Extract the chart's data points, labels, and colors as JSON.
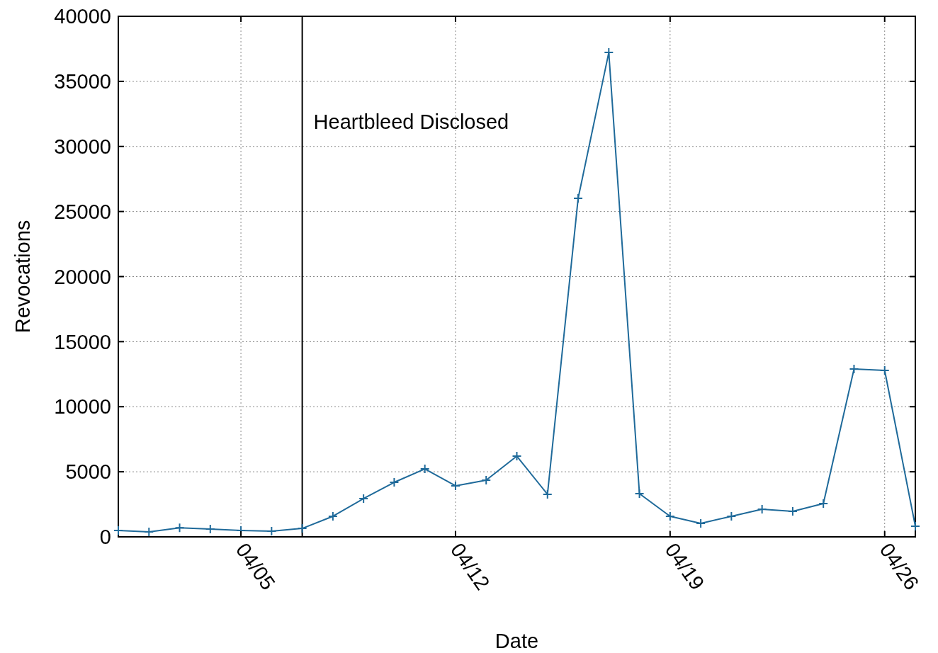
{
  "chart_data": {
    "type": "line",
    "xlabel": "Date",
    "ylabel": "Revocations",
    "x": [
      "--04-01",
      "--04-02",
      "--04-03",
      "--04-04",
      "--04-05",
      "--04-06",
      "--04-07",
      "--04-08",
      "--04-09",
      "--04-10",
      "--04-11",
      "--04-12",
      "--04-13",
      "--04-14",
      "--04-15",
      "--04-16",
      "--04-17",
      "--04-18",
      "--04-19",
      "--04-20",
      "--04-21",
      "--04-22",
      "--04-23",
      "--04-24",
      "--04-25",
      "--04-26",
      "--04-27"
    ],
    "series": [
      {
        "color": "#1f6a9a",
        "values": [
          490,
          380,
          700,
          600,
          490,
          430,
          650,
          1580,
          2940,
          4190,
          5220,
          3920,
          4350,
          6200,
          3270,
          26010,
          37220,
          3320,
          1580,
          1030,
          1580,
          2120,
          1960,
          2560,
          12900,
          12790,
          820
        ]
      }
    ],
    "xlim": [
      "--04-01",
      "--04-27"
    ],
    "xticks": [
      {
        "value": "--04-05",
        "label": "04/05"
      },
      {
        "value": "--04-12",
        "label": "04/12"
      },
      {
        "value": "--04-19",
        "label": "04/19"
      },
      {
        "value": "--04-26",
        "label": "04/26"
      }
    ],
    "ylim": [
      0,
      40000
    ],
    "yticks": [
      0,
      5000,
      10000,
      15000,
      20000,
      25000,
      30000,
      35000,
      40000
    ],
    "ref_lines": [
      {
        "axis": "x",
        "value": "--04-07",
        "label": "Heartbleed Disclosed",
        "color": "#000000"
      }
    ],
    "grid": true,
    "marker": "cross",
    "line_style": "solid"
  }
}
